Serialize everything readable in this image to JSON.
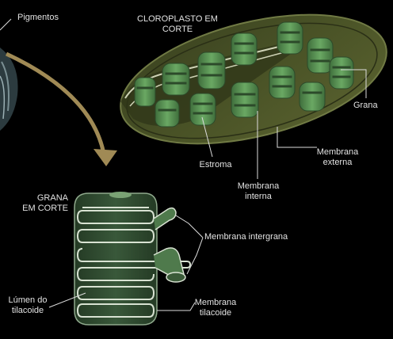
{
  "labels": {
    "pigmentos": "Pigmentos",
    "cloroplasto_line1": "CLOROPLASTO EM",
    "cloroplasto_line2": "CORTE",
    "grana": "Grana",
    "estroma": "Estroma",
    "membrana_externa_line1": "Membrana",
    "membrana_externa_line2": "externa",
    "membrana_interna_line1": "Membrana",
    "membrana_interna_line2": "interna",
    "grana_corte_line1": "GRANA",
    "grana_corte_line2": "EM CORTE",
    "membrana_intergrana": "Membrana intergrana",
    "lumen_line1": "Lúmen do",
    "lumen_line2": "tilacoide",
    "membrana_tilacoide_line1": "Membrana",
    "membrana_tilacoide_line2": "tilacoide"
  },
  "colors": {
    "background": "#000000",
    "label_text": "#e2e2e2",
    "chloroplast_body": "#4a5226",
    "grana_fill": "#5f9a57",
    "arrow": "#a08a55",
    "leader_lines": "#dcdcdc"
  }
}
